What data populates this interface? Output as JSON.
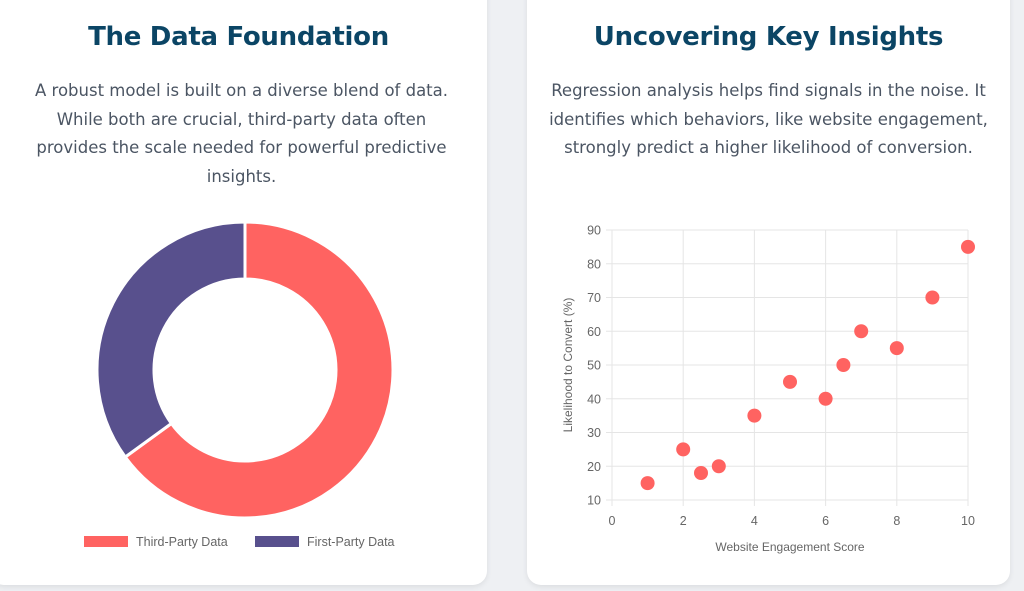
{
  "left_card": {
    "title": "The Data Foundation",
    "description": "A robust model is built on a diverse blend of data. While both are crucial, third-party data often provides the scale needed for powerful predictive insights."
  },
  "right_card": {
    "title": "Uncovering Key Insights",
    "description": "Regression analysis helps find signals in the noise. It identifies which behaviors, like website engagement, strongly predict a higher likelihood of conversion."
  },
  "colors": {
    "title": "#0b4565",
    "third_party": "#ff6361",
    "first_party": "#58508d",
    "point": "#ff6361",
    "grid": "#e5e5e5"
  },
  "chart_data": [
    {
      "type": "pie",
      "variant": "doughnut",
      "labels": [
        "Third-Party Data",
        "First-Party Data"
      ],
      "values": [
        65,
        35
      ],
      "colors": [
        "#ff6361",
        "#58508d"
      ],
      "legend_position": "bottom"
    },
    {
      "type": "scatter",
      "xlabel": "Website Engagement Score",
      "ylabel": "Likelihood to Convert (%)",
      "xlim": [
        0,
        10
      ],
      "ylim": [
        10,
        90
      ],
      "x_ticks": [
        "0",
        "2",
        "4",
        "6",
        "8",
        "10"
      ],
      "y_ticks": [
        "10",
        "20",
        "30",
        "40",
        "50",
        "60",
        "70",
        "80",
        "90"
      ],
      "grid": true,
      "points": [
        {
          "x": 1,
          "y": 15
        },
        {
          "x": 2,
          "y": 25
        },
        {
          "x": 2.5,
          "y": 18
        },
        {
          "x": 3,
          "y": 20
        },
        {
          "x": 4,
          "y": 35
        },
        {
          "x": 5,
          "y": 45
        },
        {
          "x": 6,
          "y": 40
        },
        {
          "x": 6.5,
          "y": 50
        },
        {
          "x": 7,
          "y": 60
        },
        {
          "x": 8,
          "y": 55
        },
        {
          "x": 9,
          "y": 70
        },
        {
          "x": 10,
          "y": 85
        }
      ]
    }
  ]
}
